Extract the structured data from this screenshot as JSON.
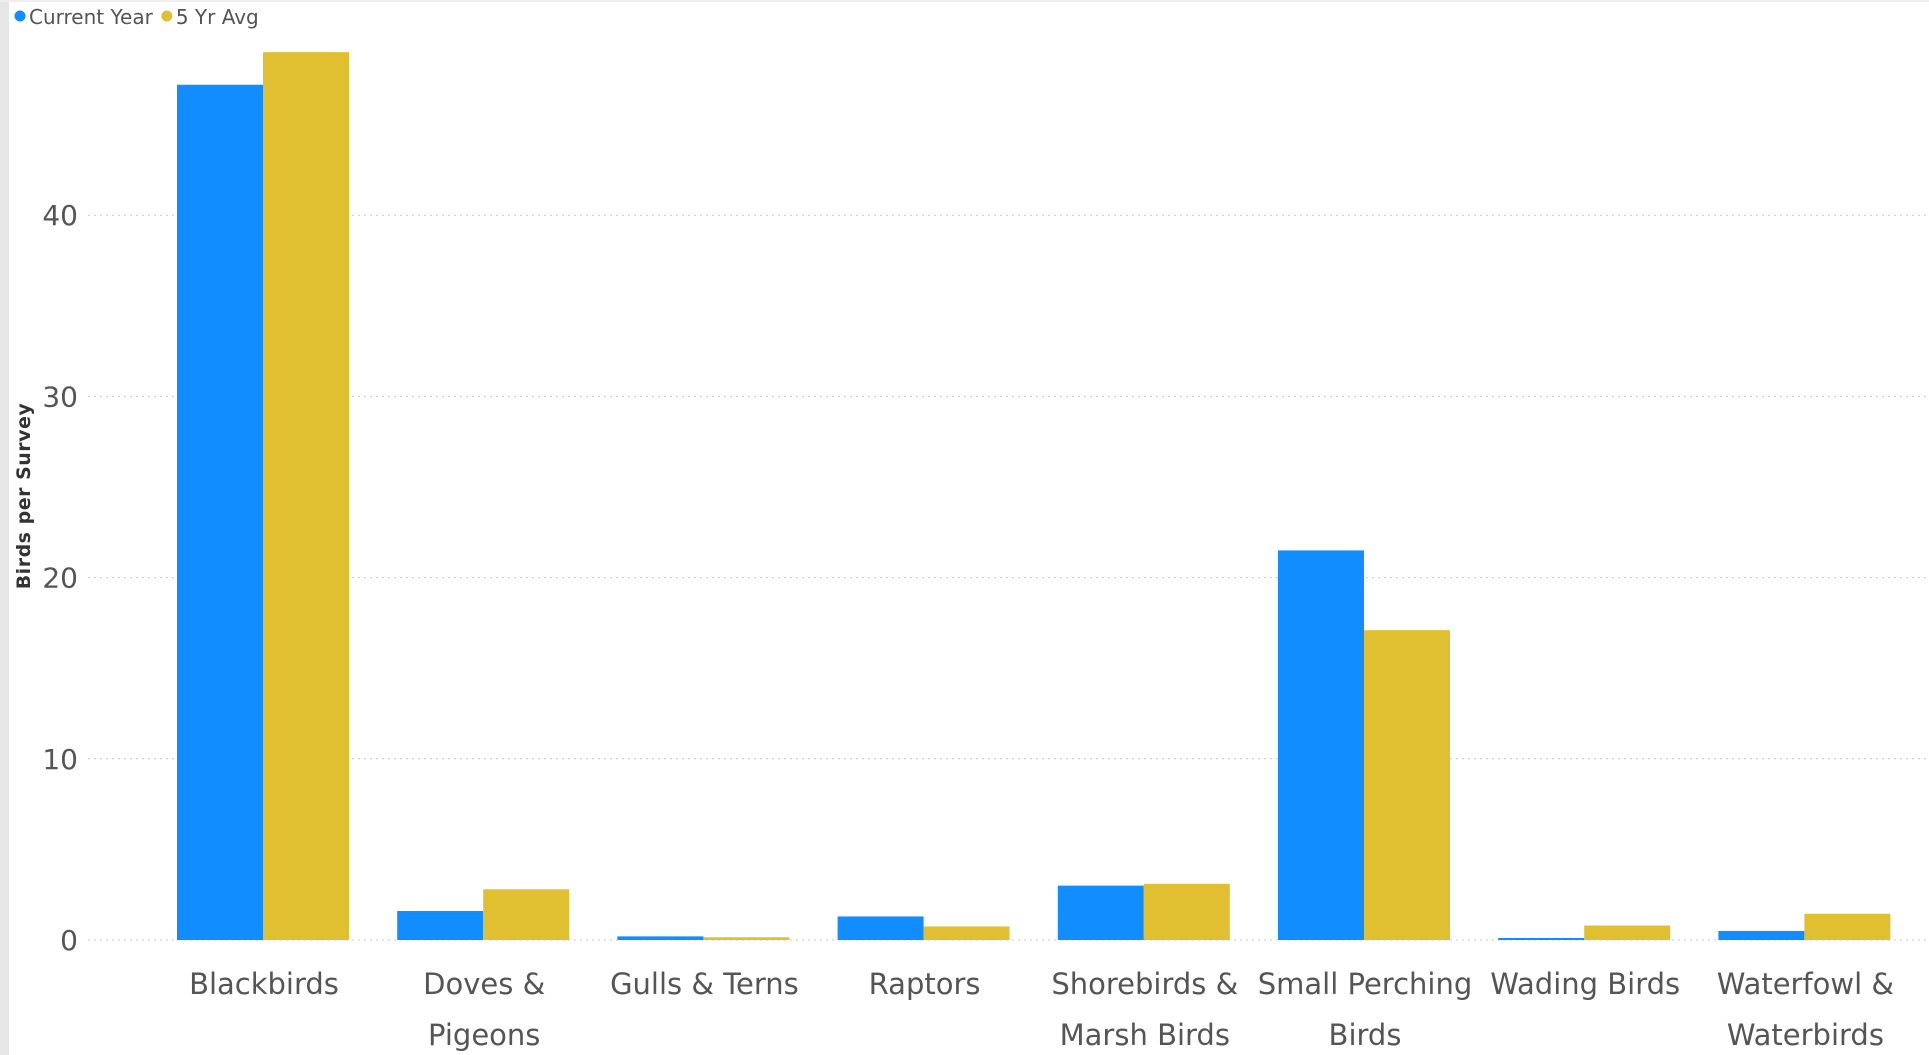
{
  "chart_data": {
    "type": "bar",
    "title": "",
    "xlabel": "",
    "ylabel": "Birds per Survey",
    "categories": [
      [
        "Blackbirds"
      ],
      [
        "Doves &",
        "Pigeons"
      ],
      [
        "Gulls & Terns"
      ],
      [
        "Raptors"
      ],
      [
        "Shorebirds &",
        "Marsh Birds"
      ],
      [
        "Small Perching",
        "Birds"
      ],
      [
        "Wading Birds"
      ],
      [
        "Waterfowl &",
        "Waterbirds"
      ]
    ],
    "series": [
      {
        "name": "Current Year",
        "color": "#118DFF",
        "values": [
          47.2,
          1.6,
          0.2,
          1.3,
          3.0,
          21.5,
          0.1,
          0.5
        ]
      },
      {
        "name": "5 Yr Avg",
        "color": "#E0C030",
        "values": [
          49.0,
          2.8,
          0.15,
          0.75,
          3.1,
          17.1,
          0.8,
          1.45
        ]
      }
    ],
    "yticks": [
      0,
      10,
      20,
      30,
      40
    ],
    "ylim": [
      0,
      49.5
    ],
    "grid": true,
    "legend_position": "top-left"
  }
}
